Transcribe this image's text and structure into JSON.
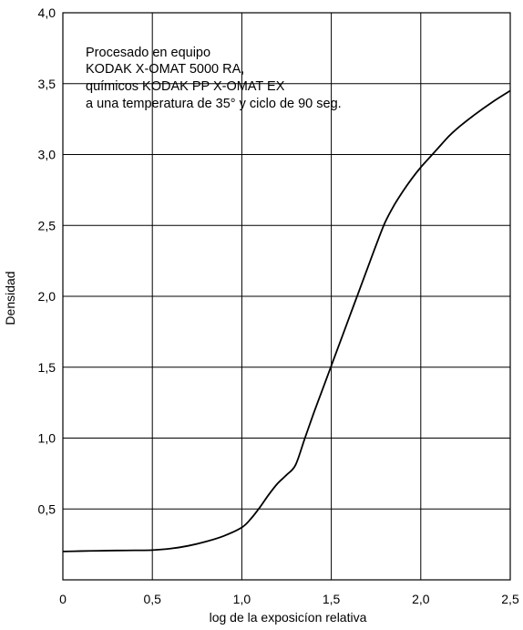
{
  "chart_data": {
    "type": "line",
    "xlabel": "log de la exposicíon relativa",
    "ylabel": "Densidad",
    "xlim": [
      0,
      2.5
    ],
    "ylim": [
      0,
      4.0
    ],
    "grid": true,
    "x_ticks": [
      {
        "value": 0,
        "label": "0"
      },
      {
        "value": 0.5,
        "label": "0,5"
      },
      {
        "value": 1.0,
        "label": "1,0"
      },
      {
        "value": 1.5,
        "label": "1,5"
      },
      {
        "value": 2.0,
        "label": "2,0"
      },
      {
        "value": 2.5,
        "label": "2,5"
      }
    ],
    "y_ticks": [
      {
        "value": 0.5,
        "label": "0,5"
      },
      {
        "value": 1.0,
        "label": "1,0"
      },
      {
        "value": 1.5,
        "label": "1,5"
      },
      {
        "value": 2.0,
        "label": "2,0"
      },
      {
        "value": 2.5,
        "label": "2,5"
      },
      {
        "value": 3.0,
        "label": "3,0"
      },
      {
        "value": 3.5,
        "label": "3,5"
      },
      {
        "value": 4.0,
        "label": "4,0"
      }
    ],
    "annotation": [
      "Procesado en equipo",
      "KODAK X-OMAT 5000 RA,",
      "químicos KODAK PP X-OMAT EX",
      "a una temperatura de 35° y ciclo de 90 seg."
    ],
    "series": [
      {
        "color": "#000000",
        "x": [
          0.0,
          0.1,
          0.2,
          0.3,
          0.4,
          0.5,
          0.6,
          0.7,
          0.8,
          0.9,
          1.0,
          1.05,
          1.1,
          1.15,
          1.2,
          1.25,
          1.3,
          1.35,
          1.4,
          1.45,
          1.5,
          1.55,
          1.6,
          1.65,
          1.7,
          1.75,
          1.8,
          1.85,
          1.9,
          1.95,
          2.0,
          2.05,
          2.1,
          2.15,
          2.2,
          2.3,
          2.4,
          2.5
        ],
        "y": [
          0.2,
          0.203,
          0.205,
          0.207,
          0.208,
          0.21,
          0.22,
          0.24,
          0.27,
          0.31,
          0.37,
          0.43,
          0.51,
          0.6,
          0.68,
          0.74,
          0.81,
          0.99,
          1.17,
          1.34,
          1.51,
          1.68,
          1.85,
          2.02,
          2.19,
          2.36,
          2.52,
          2.64,
          2.74,
          2.83,
          2.91,
          2.98,
          3.05,
          3.12,
          3.18,
          3.28,
          3.37,
          3.45
        ]
      }
    ]
  }
}
